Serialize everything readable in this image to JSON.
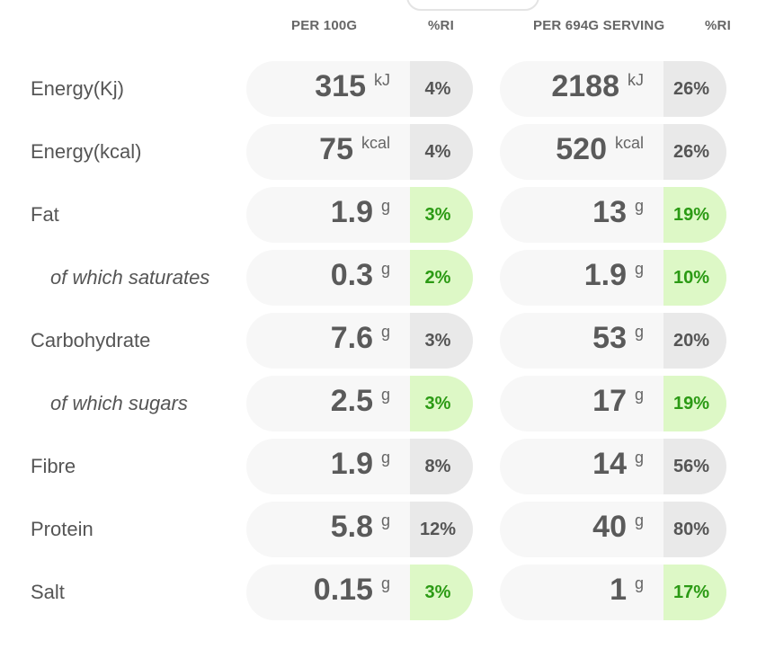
{
  "header": {
    "per100": "PER 100G",
    "ri1": "%RI",
    "serving": "PER 694G SERVING",
    "ri2": "%RI"
  },
  "rows": [
    {
      "label": "Energy(Kj)",
      "indent": false,
      "per100_value": "315",
      "per100_unit": "kJ",
      "per100_ri": "4%",
      "per100_ri_highlight": false,
      "serving_value": "2188",
      "serving_unit": "kJ",
      "serving_ri": "26%",
      "serving_ri_highlight": false
    },
    {
      "label": "Energy(kcal)",
      "indent": false,
      "per100_value": "75",
      "per100_unit": "kcal",
      "per100_ri": "4%",
      "per100_ri_highlight": false,
      "serving_value": "520",
      "serving_unit": "kcal",
      "serving_ri": "26%",
      "serving_ri_highlight": false
    },
    {
      "label": "Fat",
      "indent": false,
      "per100_value": "1.9",
      "per100_unit": "g",
      "per100_ri": "3%",
      "per100_ri_highlight": true,
      "serving_value": "13",
      "serving_unit": "g",
      "serving_ri": "19%",
      "serving_ri_highlight": true
    },
    {
      "label": "of which saturates",
      "indent": true,
      "per100_value": "0.3",
      "per100_unit": "g",
      "per100_ri": "2%",
      "per100_ri_highlight": true,
      "serving_value": "1.9",
      "serving_unit": "g",
      "serving_ri": "10%",
      "serving_ri_highlight": true
    },
    {
      "label": "Carbohydrate",
      "indent": false,
      "per100_value": "7.6",
      "per100_unit": "g",
      "per100_ri": "3%",
      "per100_ri_highlight": false,
      "serving_value": "53",
      "serving_unit": "g",
      "serving_ri": "20%",
      "serving_ri_highlight": false
    },
    {
      "label": "of which sugars",
      "indent": true,
      "per100_value": "2.5",
      "per100_unit": "g",
      "per100_ri": "3%",
      "per100_ri_highlight": true,
      "serving_value": "17",
      "serving_unit": "g",
      "serving_ri": "19%",
      "serving_ri_highlight": true
    },
    {
      "label": "Fibre",
      "indent": false,
      "per100_value": "1.9",
      "per100_unit": "g",
      "per100_ri": "8%",
      "per100_ri_highlight": false,
      "serving_value": "14",
      "serving_unit": "g",
      "serving_ri": "56%",
      "serving_ri_highlight": false
    },
    {
      "label": "Protein",
      "indent": false,
      "per100_value": "5.8",
      "per100_unit": "g",
      "per100_ri": "12%",
      "per100_ri_highlight": false,
      "serving_value": "40",
      "serving_unit": "g",
      "serving_ri": "80%",
      "serving_ri_highlight": false
    },
    {
      "label": "Salt",
      "indent": false,
      "per100_value": "0.15",
      "per100_unit": "g",
      "per100_ri": "3%",
      "per100_ri_highlight": true,
      "serving_value": "1",
      "serving_unit": "g",
      "serving_ri": "17%",
      "serving_ri_highlight": true
    }
  ],
  "colors": {
    "pill_bg": "#f7f7f7",
    "ri_bg": "#e9e9e9",
    "ri_highlight_bg": "#ddf8c6",
    "ri_highlight_text": "#2b9a14",
    "text": "#555555"
  }
}
